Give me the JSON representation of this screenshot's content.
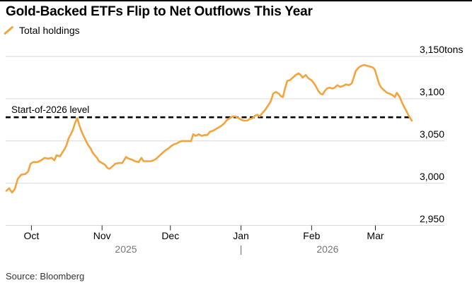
{
  "header": {
    "title": "Gold-Backed ETFs Flip to Net Outflows This Year",
    "legend_label": "Total holdings"
  },
  "footer": {
    "source": "Source: Bloomberg"
  },
  "colors": {
    "line": "#F3A43C",
    "grid": "#D9D9D9",
    "text": "#000000",
    "muted_text": "#767676",
    "ref_line": "#000000",
    "tick": "#222222",
    "source_text": "#333333",
    "background": "#FFFFFF"
  },
  "chart_data": {
    "type": "line",
    "title": "Gold-Backed ETFs Flip to Net Outflows This Year",
    "series": [
      {
        "name": "Total holdings",
        "color": "#F3A43C"
      }
    ],
    "unit": "tons",
    "ylim": [
      2950,
      3150
    ],
    "grid": true,
    "legend_position": "top-left",
    "yticks": [
      {
        "value": 3150,
        "label": "3,150",
        "suffix": " tons"
      },
      {
        "value": 3100,
        "label": "3,100"
      },
      {
        "value": 3050,
        "label": "3,050"
      },
      {
        "value": 3000,
        "label": "3,000"
      },
      {
        "value": 2950,
        "label": "2,950"
      }
    ],
    "x_start_date": "2025-09-20",
    "x_end_date": "2026-03-17",
    "x_total_days": 178,
    "xticks": [
      {
        "day": 11,
        "label": "Oct"
      },
      {
        "day": 42,
        "label": "Nov"
      },
      {
        "day": 72,
        "label": "Dec"
      },
      {
        "day": 103,
        "label": "Jan"
      },
      {
        "day": 134,
        "label": "Feb"
      },
      {
        "day": 162,
        "label": "Mar"
      }
    ],
    "year_labels": [
      {
        "day": 52.5,
        "label": "2025"
      },
      {
        "day": 103,
        "label": "|"
      },
      {
        "day": 141,
        "label": "2026"
      }
    ],
    "ref_line": {
      "label": "Start-of-2026 level",
      "value": 3078
    },
    "points_format": "[days_since_x_start_date, tons]",
    "points": [
      [
        0,
        2991
      ],
      [
        1.2,
        2994
      ],
      [
        2.5,
        2989
      ],
      [
        3.7,
        2993
      ],
      [
        5,
        3005
      ],
      [
        6.5,
        3010
      ],
      [
        8.4,
        3011
      ],
      [
        9.6,
        3014
      ],
      [
        10.6,
        3023
      ],
      [
        11.8,
        3025
      ],
      [
        13.7,
        3025
      ],
      [
        15.2,
        3027
      ],
      [
        16.8,
        3030
      ],
      [
        18.3,
        3029
      ],
      [
        19.9,
        3030
      ],
      [
        21.1,
        3027
      ],
      [
        22,
        3033
      ],
      [
        23.6,
        3032
      ],
      [
        24.5,
        3036
      ],
      [
        25.5,
        3040
      ],
      [
        26.4,
        3045
      ],
      [
        27.3,
        3053
      ],
      [
        28.3,
        3058
      ],
      [
        29.2,
        3063
      ],
      [
        30.1,
        3071
      ],
      [
        31.1,
        3077
      ],
      [
        32,
        3069
      ],
      [
        32.9,
        3062
      ],
      [
        33.9,
        3056
      ],
      [
        34.8,
        3051
      ],
      [
        35.7,
        3046
      ],
      [
        37,
        3041
      ],
      [
        37.9,
        3036
      ],
      [
        38.8,
        3033
      ],
      [
        39.8,
        3030
      ],
      [
        40.7,
        3026
      ],
      [
        41.9,
        3024
      ],
      [
        43.2,
        3022
      ],
      [
        44.4,
        3018
      ],
      [
        45.3,
        3017
      ],
      [
        46.6,
        3020
      ],
      [
        47.8,
        3023
      ],
      [
        49.4,
        3024
      ],
      [
        50.9,
        3024
      ],
      [
        52.5,
        3031
      ],
      [
        53.7,
        3029
      ],
      [
        55,
        3028
      ],
      [
        56.5,
        3026
      ],
      [
        58.1,
        3025
      ],
      [
        59.3,
        3030
      ],
      [
        60.2,
        3026
      ],
      [
        61.8,
        3026
      ],
      [
        63.4,
        3026
      ],
      [
        64.6,
        3027
      ],
      [
        65.8,
        3029
      ],
      [
        67.4,
        3033
      ],
      [
        68.6,
        3036
      ],
      [
        69.9,
        3039
      ],
      [
        71.1,
        3041
      ],
      [
        72.4,
        3044
      ],
      [
        73.6,
        3046
      ],
      [
        74.8,
        3047
      ],
      [
        76.1,
        3049
      ],
      [
        77.3,
        3050
      ],
      [
        79.8,
        3050
      ],
      [
        81.1,
        3050
      ],
      [
        82,
        3058
      ],
      [
        83.2,
        3056
      ],
      [
        84.5,
        3058
      ],
      [
        85.7,
        3056
      ],
      [
        87,
        3057
      ],
      [
        88.2,
        3057
      ],
      [
        89.4,
        3061
      ],
      [
        90.7,
        3062
      ],
      [
        91.9,
        3064
      ],
      [
        93.2,
        3066
      ],
      [
        94.4,
        3068
      ],
      [
        95.7,
        3071
      ],
      [
        96.9,
        3075
      ],
      [
        98.1,
        3077
      ],
      [
        99.4,
        3079
      ],
      [
        100.6,
        3079
      ],
      [
        101.9,
        3077
      ],
      [
        103.1,
        3075
      ],
      [
        104.3,
        3074
      ],
      [
        105.6,
        3074
      ],
      [
        106.8,
        3076
      ],
      [
        108.1,
        3077
      ],
      [
        109.3,
        3080
      ],
      [
        110.2,
        3081
      ],
      [
        111.2,
        3079
      ],
      [
        112.4,
        3083
      ],
      [
        113.7,
        3087
      ],
      [
        114.9,
        3092
      ],
      [
        116.1,
        3097
      ],
      [
        117.1,
        3106
      ],
      [
        118.3,
        3108
      ],
      [
        119.6,
        3106
      ],
      [
        120.5,
        3103
      ],
      [
        121.4,
        3102
      ],
      [
        122.3,
        3112
      ],
      [
        123.3,
        3121
      ],
      [
        124.5,
        3122
      ],
      [
        125.8,
        3125
      ],
      [
        127,
        3128
      ],
      [
        128.3,
        3130
      ],
      [
        129.2,
        3128
      ],
      [
        130.1,
        3125
      ],
      [
        131.4,
        3128
      ],
      [
        132.6,
        3124
      ],
      [
        133.9,
        3122
      ],
      [
        135.1,
        3118
      ],
      [
        136,
        3114
      ],
      [
        137,
        3109
      ],
      [
        137.9,
        3106
      ],
      [
        138.8,
        3105
      ],
      [
        139.8,
        3109
      ],
      [
        140.7,
        3112
      ],
      [
        141.9,
        3113
      ],
      [
        143.2,
        3112
      ],
      [
        144.1,
        3113
      ],
      [
        145.3,
        3116
      ],
      [
        146.6,
        3114
      ],
      [
        147.8,
        3115
      ],
      [
        149.1,
        3117
      ],
      [
        150.3,
        3116
      ],
      [
        151.6,
        3118
      ],
      [
        152.5,
        3125
      ],
      [
        153.4,
        3133
      ],
      [
        154.7,
        3137
      ],
      [
        155.9,
        3139
      ],
      [
        157.1,
        3140
      ],
      [
        158.4,
        3139
      ],
      [
        159.6,
        3138
      ],
      [
        160.9,
        3137
      ],
      [
        161.8,
        3134
      ],
      [
        162.7,
        3126
      ],
      [
        163.7,
        3117
      ],
      [
        164.6,
        3113
      ],
      [
        165.8,
        3110
      ],
      [
        167.1,
        3107
      ],
      [
        168.3,
        3106
      ],
      [
        169.6,
        3104
      ],
      [
        170.5,
        3102
      ],
      [
        171.4,
        3107
      ],
      [
        172.7,
        3102
      ],
      [
        173.6,
        3096
      ],
      [
        174.5,
        3091
      ],
      [
        175.5,
        3086
      ],
      [
        176.4,
        3081
      ],
      [
        177.3,
        3077
      ],
      [
        178,
        3074
      ]
    ]
  }
}
